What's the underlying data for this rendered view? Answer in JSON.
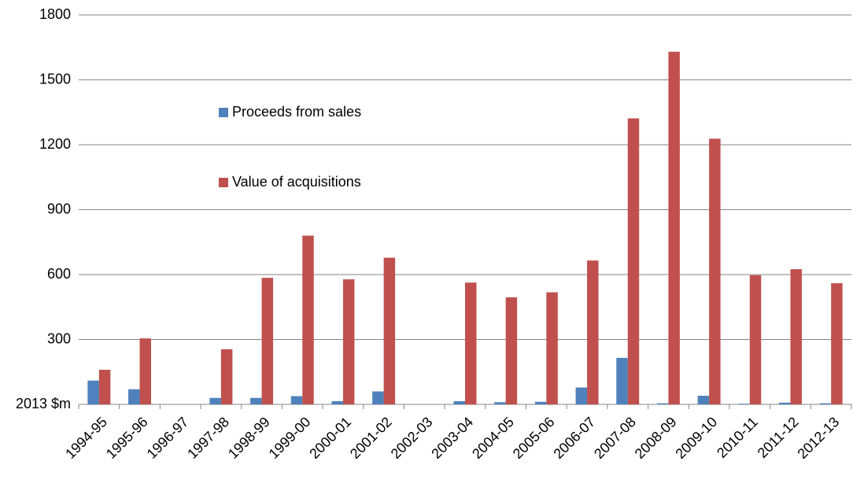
{
  "chart_data": {
    "type": "bar",
    "categories": [
      "1994-95",
      "1995-96",
      "1996-97",
      "1997-98",
      "1998-99",
      "1999-00",
      "2000-01",
      "2001-02",
      "2002-03",
      "2003-04",
      "2004-05",
      "2005-06",
      "2006-07",
      "2007-08",
      "2008-09",
      "2009-10",
      "2010-11",
      "2011-12",
      "2012-13"
    ],
    "series": [
      {
        "name": "Proceeds from sales",
        "color": "#4f81bd",
        "values": [
          110,
          70,
          null,
          30,
          30,
          38,
          15,
          60,
          null,
          15,
          10,
          12,
          78,
          215,
          5,
          40,
          3,
          8,
          5
        ]
      },
      {
        "name": "Value of acquisitions",
        "color": "#c0504d",
        "values": [
          160,
          305,
          null,
          255,
          585,
          780,
          578,
          678,
          null,
          563,
          495,
          518,
          665,
          1322,
          1630,
          1228,
          597,
          625,
          560
        ]
      }
    ],
    "ylim": [
      0,
      1800
    ],
    "yticks": [
      {
        "value": 0,
        "label": "2013 $m"
      },
      300,
      600,
      900,
      1200,
      1500,
      1800
    ],
    "grid": true
  }
}
